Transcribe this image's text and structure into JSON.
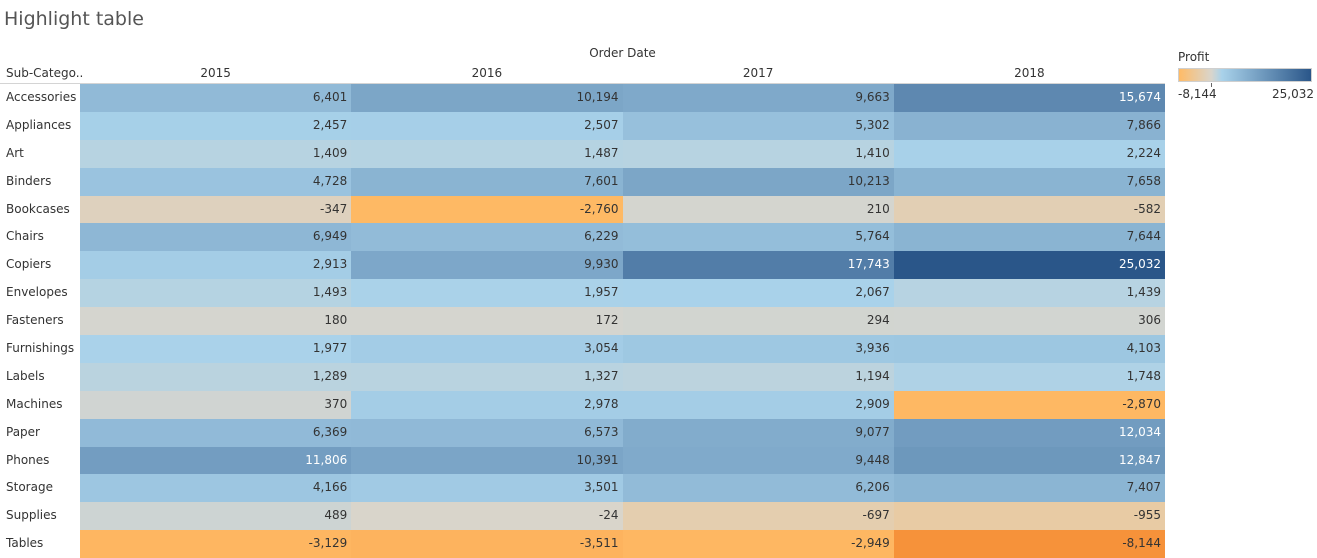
{
  "title": "Highlight table",
  "column_group_title": "Order Date",
  "row_header_title": "Sub-Catego..",
  "legend": {
    "title": "Profit",
    "min_label": "-8,144",
    "max_label": "25,032"
  },
  "colors": {
    "neg_strong": "#f6923a",
    "neg_light": "#ffbb66",
    "neutral": "#d9d5cc",
    "pos_light": "#a9d2ea",
    "pos_strong": "#2a5689"
  },
  "chart_data": {
    "type": "heatmap",
    "title": "Highlight table",
    "x_title": "Order Date",
    "y_title": "Sub-Catego..",
    "columns": [
      "2015",
      "2016",
      "2017",
      "2018"
    ],
    "rows": [
      "Accessories",
      "Appliances",
      "Art",
      "Binders",
      "Bookcases",
      "Chairs",
      "Copiers",
      "Envelopes",
      "Fasteners",
      "Furnishings",
      "Labels",
      "Machines",
      "Paper",
      "Phones",
      "Storage",
      "Supplies",
      "Tables"
    ],
    "values": [
      [
        6401,
        10194,
        9663,
        15674
      ],
      [
        2457,
        2507,
        5302,
        7866
      ],
      [
        1409,
        1487,
        1410,
        2224
      ],
      [
        4728,
        7601,
        10213,
        7658
      ],
      [
        -347,
        -2760,
        210,
        -582
      ],
      [
        6949,
        6229,
        5764,
        7644
      ],
      [
        2913,
        9930,
        17743,
        25032
      ],
      [
        1493,
        1957,
        2067,
        1439
      ],
      [
        180,
        172,
        294,
        306
      ],
      [
        1977,
        3054,
        3936,
        4103
      ],
      [
        1289,
        1327,
        1194,
        1748
      ],
      [
        370,
        2978,
        2909,
        -2870
      ],
      [
        6369,
        6573,
        9077,
        12034
      ],
      [
        11806,
        10391,
        9448,
        12847
      ],
      [
        4166,
        3501,
        6206,
        7407
      ],
      [
        489,
        -24,
        -697,
        -955
      ],
      [
        -3129,
        -3511,
        -2949,
        -8144
      ]
    ],
    "labels": [
      [
        "6,401",
        "10,194",
        "9,663",
        "15,674"
      ],
      [
        "2,457",
        "2,507",
        "5,302",
        "7,866"
      ],
      [
        "1,409",
        "1,487",
        "1,410",
        "2,224"
      ],
      [
        "4,728",
        "7,601",
        "10,213",
        "7,658"
      ],
      [
        "-347",
        "-2,760",
        "210",
        "-582"
      ],
      [
        "6,949",
        "6,229",
        "5,764",
        "7,644"
      ],
      [
        "2,913",
        "9,930",
        "17,743",
        "25,032"
      ],
      [
        "1,493",
        "1,957",
        "2,067",
        "1,439"
      ],
      [
        "180",
        "172",
        "294",
        "306"
      ],
      [
        "1,977",
        "3,054",
        "3,936",
        "4,103"
      ],
      [
        "1,289",
        "1,327",
        "1,194",
        "1,748"
      ],
      [
        "370",
        "2,978",
        "2,909",
        "-2,870"
      ],
      [
        "6,369",
        "6,573",
        "9,077",
        "12,034"
      ],
      [
        "11,806",
        "10,391",
        "9,448",
        "12,847"
      ],
      [
        "4,166",
        "3,501",
        "6,206",
        "7,407"
      ],
      [
        "489",
        "-24",
        "-697",
        "-955"
      ],
      [
        "-3,129",
        "-3,511",
        "-2,949",
        "-8,144"
      ]
    ],
    "color_range": [
      -8144,
      25032
    ]
  }
}
